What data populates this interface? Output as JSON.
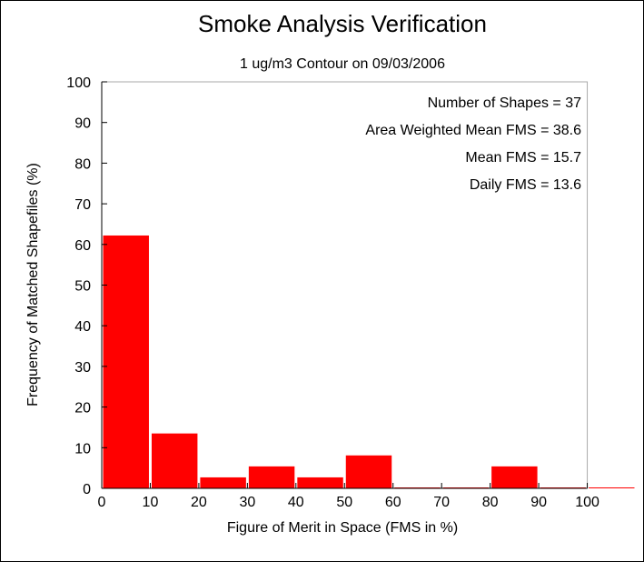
{
  "chart_data": {
    "type": "bar",
    "title": "Smoke Analysis Verification",
    "subtitle": "1 ug/m3 Contour on 09/03/2006",
    "xlabel": "Figure of Merit in Space (FMS in %)",
    "ylabel": "Frequency of Matched Shapefiles (%)",
    "xlim": [
      0,
      110
    ],
    "ylim": [
      0,
      100
    ],
    "x_ticks": [
      "0",
      "10",
      "20",
      "30",
      "40",
      "50",
      "60",
      "70",
      "80",
      "90",
      "100"
    ],
    "y_ticks": [
      "0",
      "10",
      "20",
      "30",
      "40",
      "50",
      "60",
      "70",
      "80",
      "90",
      "100"
    ],
    "bins": [
      {
        "from": 0,
        "to": 10,
        "value": 62.2
      },
      {
        "from": 10,
        "to": 20,
        "value": 13.5
      },
      {
        "from": 20,
        "to": 30,
        "value": 2.7
      },
      {
        "from": 30,
        "to": 40,
        "value": 5.4
      },
      {
        "from": 40,
        "to": 50,
        "value": 2.7
      },
      {
        "from": 50,
        "to": 60,
        "value": 8.1
      },
      {
        "from": 60,
        "to": 70,
        "value": 0
      },
      {
        "from": 70,
        "to": 80,
        "value": 0
      },
      {
        "from": 80,
        "to": 90,
        "value": 5.4
      },
      {
        "from": 90,
        "to": 100,
        "value": 0
      },
      {
        "from": 100,
        "to": 110,
        "value": 0
      }
    ],
    "annotations": [
      "Number of Shapes = 37",
      "Area Weighted Mean FMS = 38.6",
      "Mean FMS = 15.7",
      "Daily FMS = 13.6"
    ],
    "bar_color": "#ff0000",
    "grid": false
  }
}
